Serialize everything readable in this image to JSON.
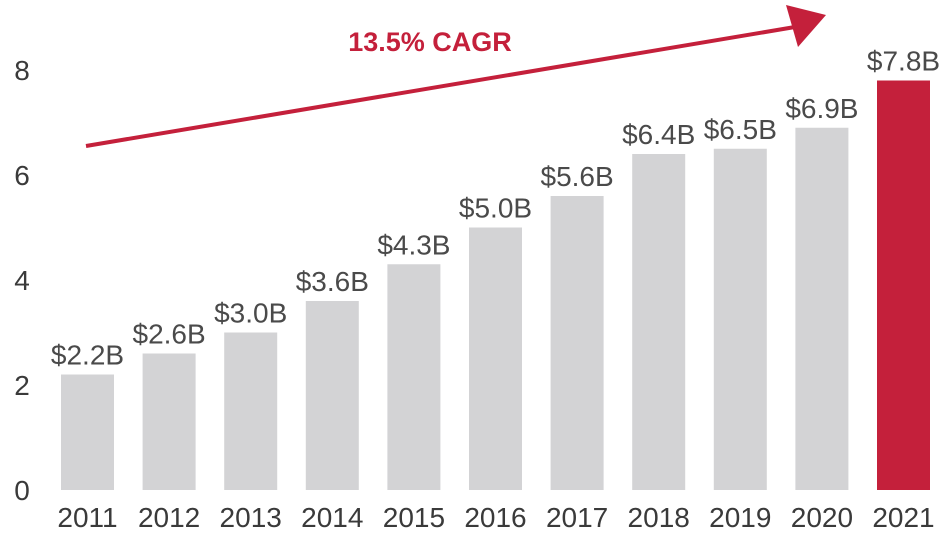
{
  "chart_data": {
    "type": "bar",
    "title": "",
    "xlabel": "",
    "ylabel": "",
    "categories": [
      "2011",
      "2012",
      "2013",
      "2014",
      "2015",
      "2016",
      "2017",
      "2018",
      "2019",
      "2020",
      "2021"
    ],
    "values": [
      2.2,
      2.6,
      3.0,
      3.6,
      4.3,
      5.0,
      5.6,
      6.4,
      6.5,
      6.9,
      7.8
    ],
    "data_labels": [
      "$2.2B",
      "$2.6B",
      "$3.0B",
      "$3.6B",
      "$4.3B",
      "$5.0B",
      "$5.6B",
      "$6.4B",
      "$6.5B",
      "$6.9B",
      "$7.8B"
    ],
    "ylim": [
      0,
      8
    ],
    "yticks": [
      0,
      2,
      4,
      6,
      8
    ],
    "grid": false,
    "highlight_index": 10,
    "annotation": {
      "text": "13.5% CAGR",
      "kind": "trend-arrow"
    }
  },
  "colors": {
    "bar": "#d3d3d5",
    "highlight": "#c4203b",
    "label": "#4a4a4a",
    "highlight_label": "#c4203b"
  }
}
